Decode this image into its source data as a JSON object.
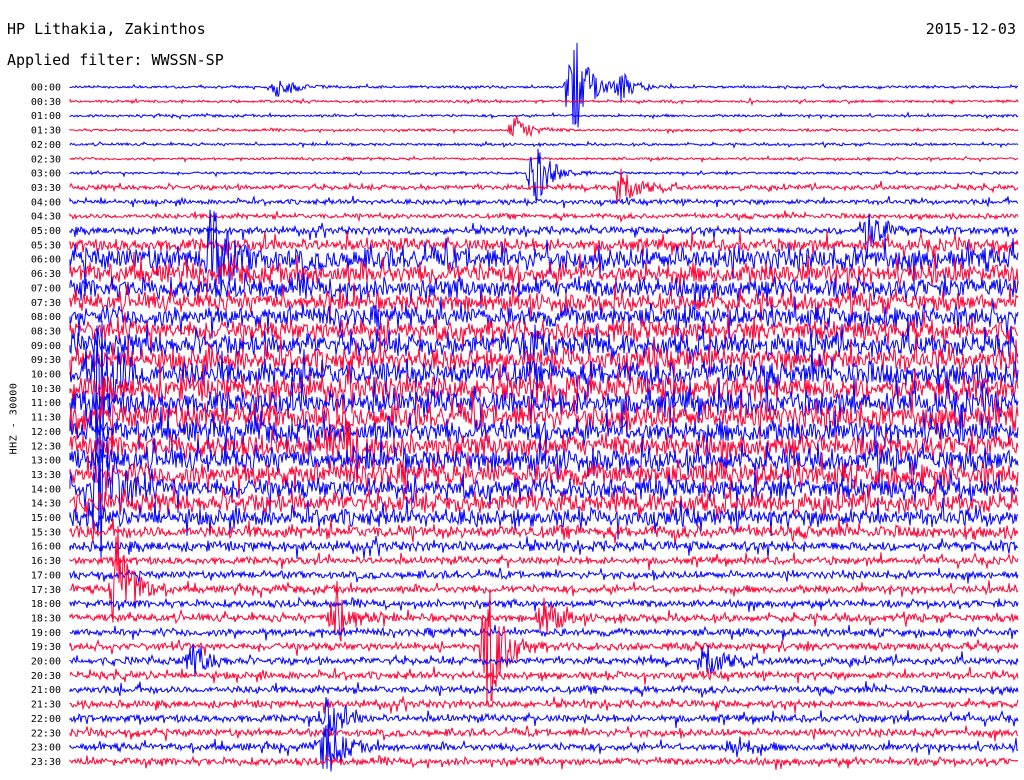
{
  "header": {
    "station": "HP Lithakia, Zakinthos",
    "date": "2015-12-03",
    "filter": "Applied filter: WWSSN-SP",
    "channel_label": "HHZ - 30000"
  },
  "colors": {
    "odd": "#0000ff",
    "even": "#ff0033",
    "text": "#000000"
  },
  "chart_data": {
    "type": "line",
    "title": "HP Lithakia, Zakinthos",
    "subtitle": "Applied filter: WWSSN-SP",
    "ylabel": "HHZ - 30000",
    "xlabel": "",
    "categories": [
      "00:00",
      "00:30",
      "01:00",
      "01:30",
      "02:00",
      "02:30",
      "03:00",
      "03:30",
      "04:00",
      "04:30",
      "05:00",
      "05:30",
      "06:00",
      "06:30",
      "07:00",
      "07:30",
      "08:00",
      "08:30",
      "09:00",
      "09:30",
      "10:00",
      "10:30",
      "11:00",
      "11:30",
      "12:00",
      "12:30",
      "13:00",
      "13:30",
      "14:00",
      "14:30",
      "15:00",
      "15:30",
      "16:00",
      "16:30",
      "17:00",
      "17:30",
      "18:00",
      "18:30",
      "19:00",
      "19:30",
      "20:00",
      "20:30",
      "21:00",
      "21:30",
      "22:00",
      "22:30",
      "23:00",
      "23:30"
    ],
    "noise_level": [
      1,
      1,
      1,
      1,
      1,
      1,
      1,
      2,
      2,
      2,
      3,
      5,
      9,
      8,
      8,
      7,
      8,
      8,
      9,
      9,
      10,
      10,
      10,
      10,
      9,
      9,
      9,
      9,
      8,
      8,
      7,
      5,
      4,
      3,
      3,
      3,
      3,
      3,
      3,
      3,
      3,
      3,
      3,
      3,
      3,
      3,
      3,
      3
    ],
    "events": [
      {
        "row": 0,
        "t": 0.53,
        "amp": 60
      },
      {
        "row": 0,
        "t": 0.22,
        "amp": 12
      },
      {
        "row": 0,
        "t": 0.58,
        "amp": 14
      },
      {
        "row": 3,
        "t": 0.47,
        "amp": 14
      },
      {
        "row": 6,
        "t": 0.49,
        "amp": 35
      },
      {
        "row": 7,
        "t": 0.58,
        "amp": 25
      },
      {
        "row": 10,
        "t": 0.84,
        "amp": 25
      },
      {
        "row": 12,
        "t": 0.15,
        "amp": 50
      },
      {
        "row": 18,
        "t": 0.48,
        "amp": 15
      },
      {
        "row": 25,
        "t": 0.29,
        "amp": 22
      },
      {
        "row": 35,
        "t": 0.05,
        "amp": 60
      },
      {
        "row": 37,
        "t": 0.28,
        "amp": 35
      },
      {
        "row": 37,
        "t": 0.5,
        "amp": 20
      },
      {
        "row": 39,
        "t": 0.44,
        "amp": 75
      },
      {
        "row": 40,
        "t": 0.67,
        "amp": 22
      },
      {
        "row": 40,
        "t": 0.13,
        "amp": 18
      },
      {
        "row": 44,
        "t": 0.27,
        "amp": 25
      },
      {
        "row": 46,
        "t": 0.27,
        "amp": 30
      },
      {
        "row": 46,
        "t": 0.7,
        "amp": 12
      },
      {
        "row": 20,
        "t": 0.03,
        "amp": 80
      },
      {
        "row": 28,
        "t": 0.03,
        "amp": 90
      }
    ],
    "grid": false
  }
}
